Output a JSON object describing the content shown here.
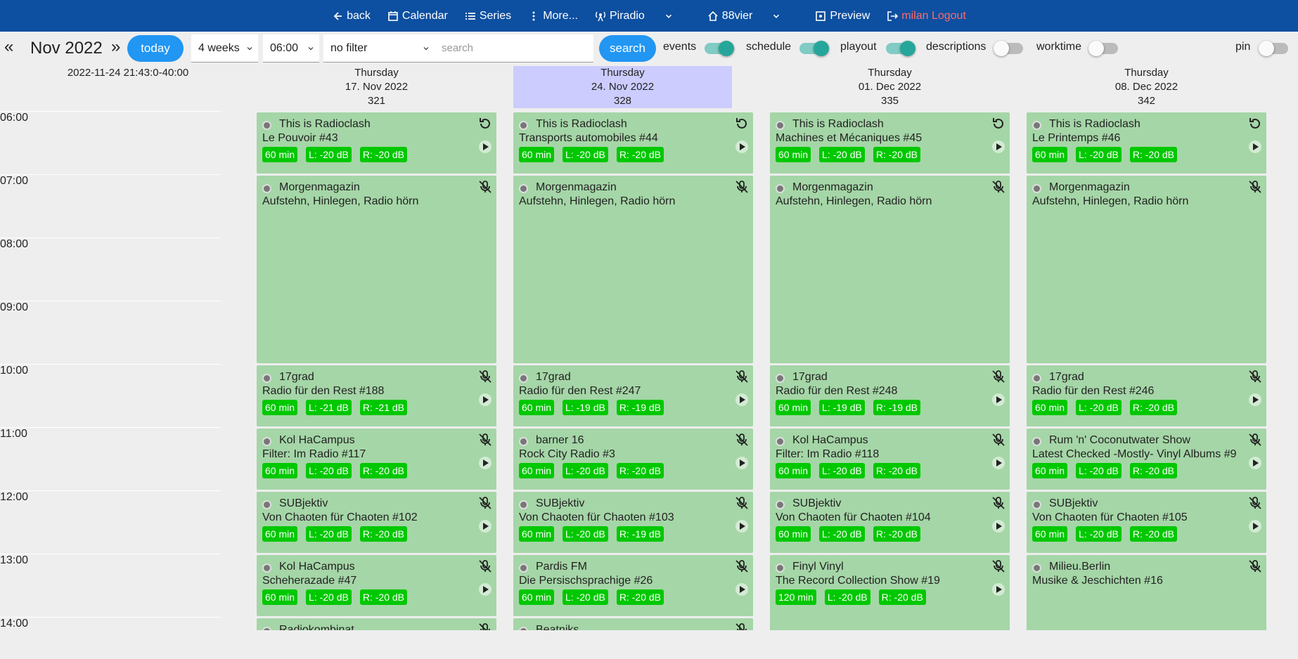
{
  "nav": {
    "items": [
      "back",
      "Calendar",
      "Series",
      "More...",
      "Piradio",
      "88vier",
      "Preview",
      "milan Logout"
    ]
  },
  "toolbar": {
    "prev": "«",
    "month": "Nov 2022",
    "next": "»",
    "today": "today",
    "range": "4 weeks",
    "time": "06:00",
    "filter": "no filter",
    "search_placeholder": "search",
    "search_button": "search",
    "toggles": [
      {
        "label": "events",
        "on": true
      },
      {
        "label": "schedule",
        "on": true
      },
      {
        "label": "playout",
        "on": true
      },
      {
        "label": "descriptions",
        "on": false
      },
      {
        "label": "worktime",
        "on": false
      },
      {
        "label": "pin",
        "on": false
      }
    ]
  },
  "timestamp": "2022-11-24 21:43:0-40:00",
  "hours": [
    "06:00",
    "07:00",
    "08:00",
    "09:00",
    "10:00",
    "11:00",
    "12:00",
    "13:00",
    "14:00"
  ],
  "days": [
    {
      "weekday": "Thursday",
      "date": "17. Nov 2022",
      "week": "321",
      "highlight": false,
      "events": [
        {
          "start": "06:00",
          "hours": 1,
          "series": "This is Radioclash",
          "title": "Le Pouvoir #43",
          "badges": [
            "60 min",
            "L: -20 dB",
            "R: -20 dB"
          ],
          "rerun": true,
          "play": true
        },
        {
          "start": "07:00",
          "hours": 3,
          "series": "Morgenmagazin",
          "title": "Aufstehn, Hinlegen, Radio hörn"
        },
        {
          "start": "10:00",
          "hours": 1,
          "series": "17grad",
          "title": "Radio für den Rest #188",
          "badges": [
            "60 min",
            "L: -21 dB",
            "R: -21 dB"
          ],
          "play": true
        },
        {
          "start": "11:00",
          "hours": 1,
          "series": "Kol HaCampus",
          "title": "Filter: Im Radio #117",
          "badges": [
            "60 min",
            "L: -20 dB",
            "R: -20 dB"
          ],
          "play": true
        },
        {
          "start": "12:00",
          "hours": 1,
          "series": "SUBjektiv",
          "title": "Von Chaoten für Chaoten #102",
          "badges": [
            "60 min",
            "L: -20 dB",
            "R: -20 dB"
          ],
          "play": true
        },
        {
          "start": "13:00",
          "hours": 1,
          "series": "Kol HaCampus",
          "title": "Scheherazade #47",
          "badges": [
            "60 min",
            "L: -20 dB",
            "R: -20 dB"
          ],
          "play": true
        },
        {
          "start": "14:00",
          "hours": 1,
          "series": "Radiokombinat"
        }
      ]
    },
    {
      "weekday": "Thursday",
      "date": "24. Nov 2022",
      "week": "328",
      "highlight": true,
      "events": [
        {
          "start": "06:00",
          "hours": 1,
          "series": "This is Radioclash",
          "title": "Transports automobiles #44",
          "badges": [
            "60 min",
            "L: -20 dB",
            "R: -20 dB"
          ],
          "rerun": true,
          "play": true
        },
        {
          "start": "07:00",
          "hours": 3,
          "series": "Morgenmagazin",
          "title": "Aufstehn, Hinlegen, Radio hörn"
        },
        {
          "start": "10:00",
          "hours": 1,
          "series": "17grad",
          "title": "Radio für den Rest #247",
          "badges": [
            "60 min",
            "L: -19 dB",
            "R: -19 dB"
          ],
          "play": true
        },
        {
          "start": "11:00",
          "hours": 1,
          "series": "barner 16",
          "title": "Rock City Radio #3",
          "badges": [
            "60 min",
            "L: -20 dB",
            "R: -20 dB"
          ],
          "play": true
        },
        {
          "start": "12:00",
          "hours": 1,
          "series": "SUBjektiv",
          "title": "Von Chaoten für Chaoten #103",
          "badges": [
            "60 min",
            "L: -20 dB",
            "R: -19 dB"
          ],
          "play": true
        },
        {
          "start": "13:00",
          "hours": 1,
          "series": "Pardis FM",
          "title": "Die Persischsprachige #26",
          "badges": [
            "60 min",
            "L: -20 dB",
            "R: -20 dB"
          ],
          "play": true
        },
        {
          "start": "14:00",
          "hours": 1,
          "series": "Beatniks"
        }
      ]
    },
    {
      "weekday": "Thursday",
      "date": "01. Dec 2022",
      "week": "335",
      "highlight": false,
      "events": [
        {
          "start": "06:00",
          "hours": 1,
          "series": "This is Radioclash",
          "title": "Machines et Mécaniques #45",
          "badges": [
            "60 min",
            "L: -20 dB",
            "R: -20 dB"
          ],
          "rerun": true,
          "play": true
        },
        {
          "start": "07:00",
          "hours": 3,
          "series": "Morgenmagazin",
          "title": "Aufstehn, Hinlegen, Radio hörn"
        },
        {
          "start": "10:00",
          "hours": 1,
          "series": "17grad",
          "title": "Radio für den Rest #248",
          "badges": [
            "60 min",
            "L: -19 dB",
            "R: -19 dB"
          ],
          "play": true
        },
        {
          "start": "11:00",
          "hours": 1,
          "series": "Kol HaCampus",
          "title": "Filter: Im Radio #118",
          "badges": [
            "60 min",
            "L: -20 dB",
            "R: -20 dB"
          ],
          "play": true
        },
        {
          "start": "12:00",
          "hours": 1,
          "series": "SUBjektiv",
          "title": "Von Chaoten für Chaoten #104",
          "badges": [
            "60 min",
            "L: -20 dB",
            "R: -20 dB"
          ],
          "play": true
        },
        {
          "start": "13:00",
          "hours": 2,
          "series": "Finyl Vinyl",
          "title": "The Record Collection Show #19",
          "badges": [
            "120 min",
            "L: -20 dB",
            "R: -20 dB"
          ],
          "play": true
        }
      ]
    },
    {
      "weekday": "Thursday",
      "date": "08. Dec 2022",
      "week": "342",
      "highlight": false,
      "events": [
        {
          "start": "06:00",
          "hours": 1,
          "series": "This is Radioclash",
          "title": "Le Printemps #46",
          "badges": [
            "60 min",
            "L: -20 dB",
            "R: -20 dB"
          ],
          "rerun": true,
          "play": true
        },
        {
          "start": "07:00",
          "hours": 3,
          "series": "Morgenmagazin",
          "title": "Aufstehn, Hinlegen, Radio hörn"
        },
        {
          "start": "10:00",
          "hours": 1,
          "series": "17grad",
          "title": "Radio für den Rest #246",
          "badges": [
            "60 min",
            "L: -20 dB",
            "R: -20 dB"
          ],
          "play": true
        },
        {
          "start": "11:00",
          "hours": 1,
          "series": "Rum 'n' Coconutwater Show",
          "title": "Latest Checked -Mostly- Vinyl Albums #9",
          "badges": [
            "60 min",
            "L: -20 dB",
            "R: -20 dB"
          ],
          "play": true
        },
        {
          "start": "12:00",
          "hours": 1,
          "series": "SUBjektiv",
          "title": "Von Chaoten für Chaoten #105",
          "badges": [
            "60 min",
            "L: -20 dB",
            "R: -20 dB"
          ],
          "play": true
        },
        {
          "start": "13:00",
          "hours": 2,
          "series": "Milieu.Berlin",
          "title": "Musike & Jeschichten #16"
        }
      ]
    }
  ]
}
